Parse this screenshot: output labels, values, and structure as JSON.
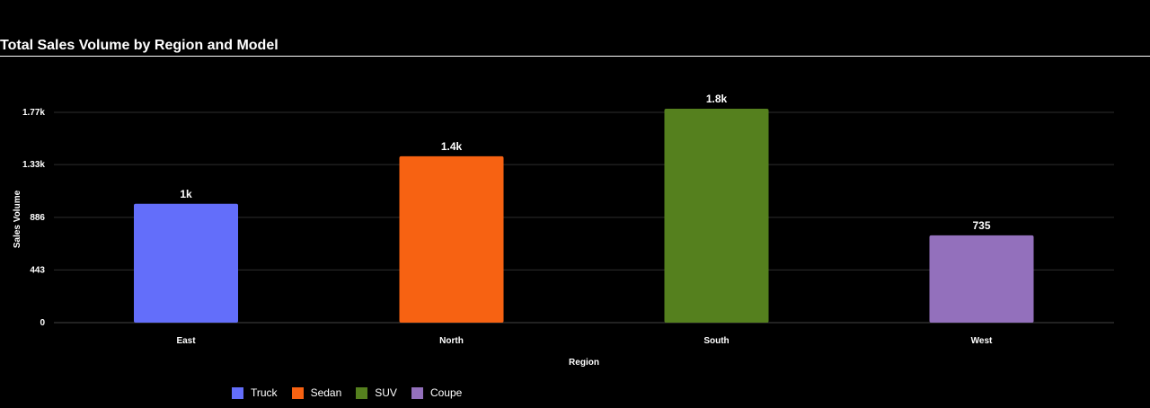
{
  "chart_data": {
    "type": "bar",
    "title": "Total Sales Volume by Region and Model",
    "xlabel": "Region",
    "ylabel": "Sales Volume",
    "categories": [
      "East",
      "North",
      "South",
      "West"
    ],
    "series": [
      {
        "name": "Truck",
        "category": "East",
        "value": 1000,
        "label": "1k",
        "color": "#636EFA"
      },
      {
        "name": "Sedan",
        "category": "North",
        "value": 1400,
        "label": "1.4k",
        "color": "#F76212"
      },
      {
        "name": "SUV",
        "category": "South",
        "value": 1800,
        "label": "1.8k",
        "color": "#55801E"
      },
      {
        "name": "Coupe",
        "category": "West",
        "value": 735,
        "label": "735",
        "color": "#9370BC"
      }
    ],
    "yticks": [
      {
        "value": 0,
        "label": "0"
      },
      {
        "value": 443,
        "label": "443"
      },
      {
        "value": 886,
        "label": "886"
      },
      {
        "value": 1330,
        "label": "1.33k"
      },
      {
        "value": 1770,
        "label": "1.77k"
      }
    ],
    "ylim": [
      0,
      1800
    ],
    "grid": true,
    "legend_position": "bottom"
  }
}
